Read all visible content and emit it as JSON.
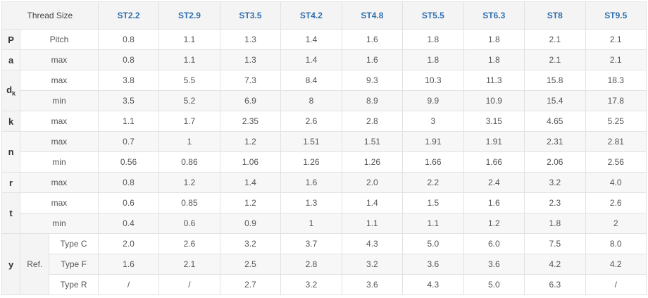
{
  "header": {
    "label": "Thread Size",
    "sizes": [
      "ST2.2",
      "ST2.9",
      "ST3.5",
      "ST4.2",
      "ST4.8",
      "ST5.5",
      "ST6.3",
      "ST8",
      "ST9.5"
    ]
  },
  "rows": [
    {
      "symbol": "P",
      "ref": "",
      "sub": "Pitch",
      "values": [
        "0.8",
        "1.1",
        "1.3",
        "1.4",
        "1.6",
        "1.8",
        "1.8",
        "2.1",
        "2.1"
      ]
    },
    {
      "symbol": "a",
      "ref": "",
      "sub": "max",
      "values": [
        "0.8",
        "1.1",
        "1.3",
        "1.4",
        "1.6",
        "1.8",
        "1.8",
        "2.1",
        "2.1"
      ]
    },
    {
      "symbol": "d",
      "symbol_sub": "k",
      "ref": "",
      "sub": "max",
      "values": [
        "3.8",
        "5.5",
        "7.3",
        "8.4",
        "9.3",
        "10.3",
        "11.3",
        "15.8",
        "18.3"
      ]
    },
    {
      "ref": "",
      "sub": "min",
      "values": [
        "3.5",
        "5.2",
        "6.9",
        "8",
        "8.9",
        "9.9",
        "10.9",
        "15.4",
        "17.8"
      ]
    },
    {
      "symbol": "k",
      "ref": "",
      "sub": "max",
      "values": [
        "1.1",
        "1.7",
        "2.35",
        "2.6",
        "2.8",
        "3",
        "3.15",
        "4.65",
        "5.25"
      ]
    },
    {
      "symbol": "n",
      "ref": "",
      "sub": "max",
      "values": [
        "0.7",
        "1",
        "1.2",
        "1.51",
        "1.51",
        "1.91",
        "1.91",
        "2.31",
        "2.81"
      ]
    },
    {
      "ref": "",
      "sub": "min",
      "values": [
        "0.56",
        "0.86",
        "1.06",
        "1.26",
        "1.26",
        "1.66",
        "1.66",
        "2.06",
        "2.56"
      ]
    },
    {
      "symbol": "r",
      "ref": "",
      "sub": "max",
      "values": [
        "0.8",
        "1.2",
        "1.4",
        "1.6",
        "2.0",
        "2.2",
        "2.4",
        "3.2",
        "4.0"
      ]
    },
    {
      "symbol": "t",
      "ref": "",
      "sub": "max",
      "values": [
        "0.6",
        "0.85",
        "1.2",
        "1.3",
        "1.4",
        "1.5",
        "1.6",
        "2.3",
        "2.6"
      ]
    },
    {
      "ref": "",
      "sub": "min",
      "values": [
        "0.4",
        "0.6",
        "0.9",
        "1",
        "1.1",
        "1.1",
        "1.2",
        "1.8",
        "2"
      ]
    },
    {
      "symbol": "y",
      "ref": "Ref.",
      "sub": "Type C",
      "values": [
        "2.0",
        "2.6",
        "3.2",
        "3.7",
        "4.3",
        "5.0",
        "6.0",
        "7.5",
        "8.0"
      ]
    },
    {
      "ref": "",
      "sub": "Type F",
      "values": [
        "1.6",
        "2.1",
        "2.5",
        "2.8",
        "3.2",
        "3.6",
        "3.6",
        "4.2",
        "4.2"
      ]
    },
    {
      "ref": "",
      "sub": "Type R",
      "values": [
        "/",
        "/",
        "2.7",
        "3.2",
        "3.6",
        "4.3",
        "5.0",
        "6.3",
        "/"
      ]
    }
  ]
}
